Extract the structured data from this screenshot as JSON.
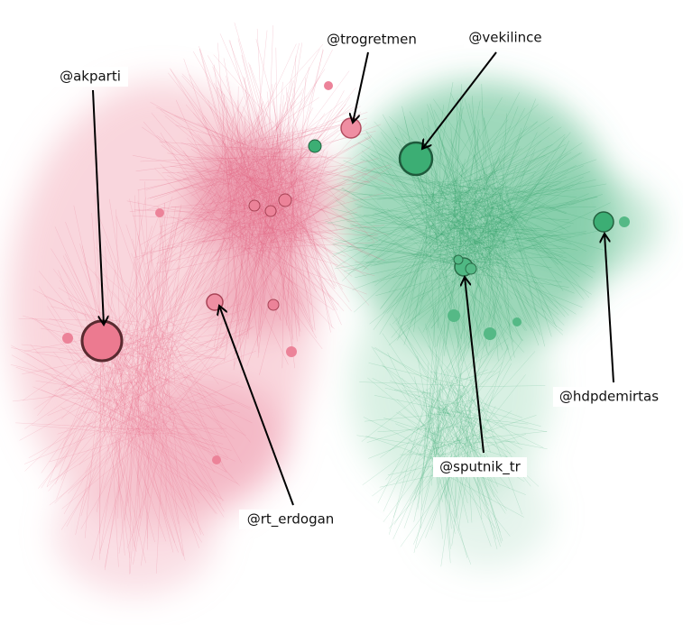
{
  "nodes": [
    {
      "label": "@akparti"
    },
    {
      "label": "@trogretmen"
    },
    {
      "label": "@vekilince"
    },
    {
      "label": "@rt_erdogan"
    },
    {
      "label": "@sputnik_tr"
    },
    {
      "label": "@hdpdemirtas"
    }
  ]
}
